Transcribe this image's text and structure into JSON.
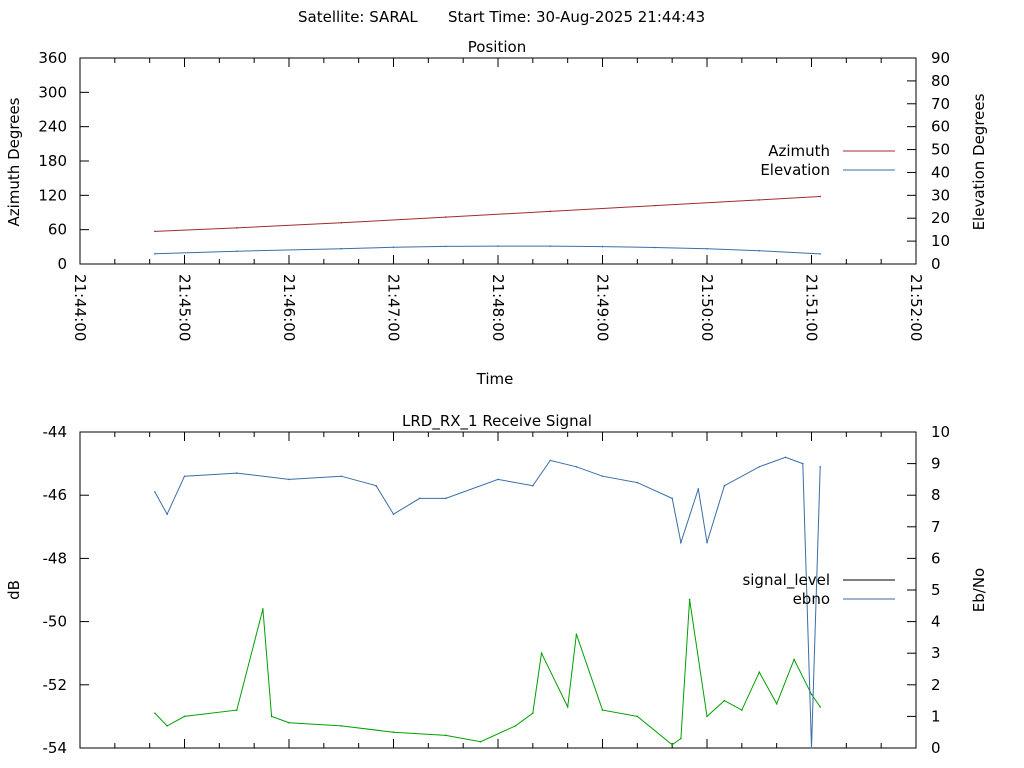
{
  "header": {
    "satellite_label": "Satellite: SARAL",
    "start_time_label": "Start Time: 30-Aug-2025 21:44:43"
  },
  "colors": {
    "azimuth": "#a52a2a",
    "elevation": "#3a6ea5",
    "signal_level": "#00a000",
    "signal_level_legend": "#000000",
    "ebno": "#3a6ea5",
    "axis": "#000000"
  },
  "chart_data": [
    {
      "type": "line",
      "title": "Position",
      "xlabel": "Time",
      "ylabel": "Azimuth Degrees",
      "y2label": "Elevation Degrees",
      "xlim": [
        "21:44:00",
        "21:52:00"
      ],
      "ylim": [
        0,
        360
      ],
      "y2lim": [
        0,
        90
      ],
      "x_ticks": [
        "21:44:00",
        "21:45:00",
        "21:46:00",
        "21:47:00",
        "21:48:00",
        "21:49:00",
        "21:50:00",
        "21:51:00",
        "21:52:00"
      ],
      "y_ticks": [
        0,
        60,
        120,
        180,
        240,
        300,
        360
      ],
      "y2_ticks": [
        0,
        10,
        20,
        30,
        40,
        50,
        60,
        70,
        80,
        90
      ],
      "grid": false,
      "legend": "right",
      "series": [
        {
          "name": "Azimuth",
          "axis": "left",
          "x": [
            "21:44:43",
            "21:45:30",
            "21:46:30",
            "21:47:30",
            "21:48:30",
            "21:49:30",
            "21:50:30",
            "21:51:05"
          ],
          "values": [
            57,
            63,
            72,
            82,
            92,
            102,
            112,
            118
          ]
        },
        {
          "name": "Elevation",
          "axis": "right",
          "x": [
            "21:44:43",
            "21:45:30",
            "21:46:30",
            "21:47:00",
            "21:47:30",
            "21:48:00",
            "21:48:30",
            "21:49:00",
            "21:49:30",
            "21:50:00",
            "21:50:30",
            "21:51:05"
          ],
          "values": [
            4.5,
            5.6,
            6.7,
            7.3,
            7.7,
            7.8,
            7.8,
            7.6,
            7.2,
            6.7,
            5.8,
            4.4
          ]
        }
      ]
    },
    {
      "type": "line",
      "title": "LRD_RX_1 Receive Signal",
      "ylabel": "dB",
      "y2label": "Eb/No",
      "xlim": [
        "21:44:00",
        "21:52:00"
      ],
      "ylim": [
        -54,
        -44
      ],
      "y2lim": [
        0,
        10
      ],
      "y_ticks": [
        -54,
        -52,
        -50,
        -48,
        -46,
        -44
      ],
      "y2_ticks": [
        0,
        1,
        2,
        3,
        4,
        5,
        6,
        7,
        8,
        9,
        10
      ],
      "grid": false,
      "legend": "right",
      "series": [
        {
          "name": "signal_level",
          "axis": "left",
          "x": [
            "21:44:43",
            "21:44:50",
            "21:45:00",
            "21:45:30",
            "21:45:45",
            "21:45:50",
            "21:46:00",
            "21:46:30",
            "21:47:00",
            "21:47:30",
            "21:47:50",
            "21:48:10",
            "21:48:20",
            "21:48:25",
            "21:48:40",
            "21:48:45",
            "21:49:00",
            "21:49:20",
            "21:49:40",
            "21:49:45",
            "21:49:50",
            "21:50:00",
            "21:50:10",
            "21:50:20",
            "21:50:30",
            "21:50:40",
            "21:50:50",
            "21:51:00",
            "21:51:05"
          ],
          "values": [
            -52.9,
            -53.3,
            -53.0,
            -52.8,
            -49.6,
            -53.0,
            -53.2,
            -53.3,
            -53.5,
            -53.6,
            -53.8,
            -53.3,
            -52.9,
            -51.0,
            -52.7,
            -50.4,
            -52.8,
            -53.0,
            -53.9,
            -53.7,
            -49.3,
            -53.0,
            -52.5,
            -52.8,
            -51.6,
            -52.6,
            -51.2,
            -52.3,
            -52.7
          ]
        },
        {
          "name": "ebno",
          "axis": "right",
          "x": [
            "21:44:43",
            "21:44:50",
            "21:45:00",
            "21:45:30",
            "21:46:00",
            "21:46:30",
            "21:46:50",
            "21:47:00",
            "21:47:15",
            "21:47:30",
            "21:48:00",
            "21:48:20",
            "21:48:30",
            "21:48:45",
            "21:49:00",
            "21:49:20",
            "21:49:40",
            "21:49:45",
            "21:49:55",
            "21:50:00",
            "21:50:10",
            "21:50:30",
            "21:50:45",
            "21:50:55",
            "21:51:00",
            "21:51:05"
          ],
          "values": [
            8.1,
            7.4,
            8.6,
            8.7,
            8.5,
            8.6,
            8.3,
            7.4,
            7.9,
            7.9,
            8.5,
            8.3,
            9.1,
            8.9,
            8.6,
            8.4,
            7.9,
            6.5,
            8.2,
            6.5,
            8.3,
            8.9,
            9.2,
            9.0,
            0.0,
            8.9
          ]
        }
      ]
    }
  ]
}
